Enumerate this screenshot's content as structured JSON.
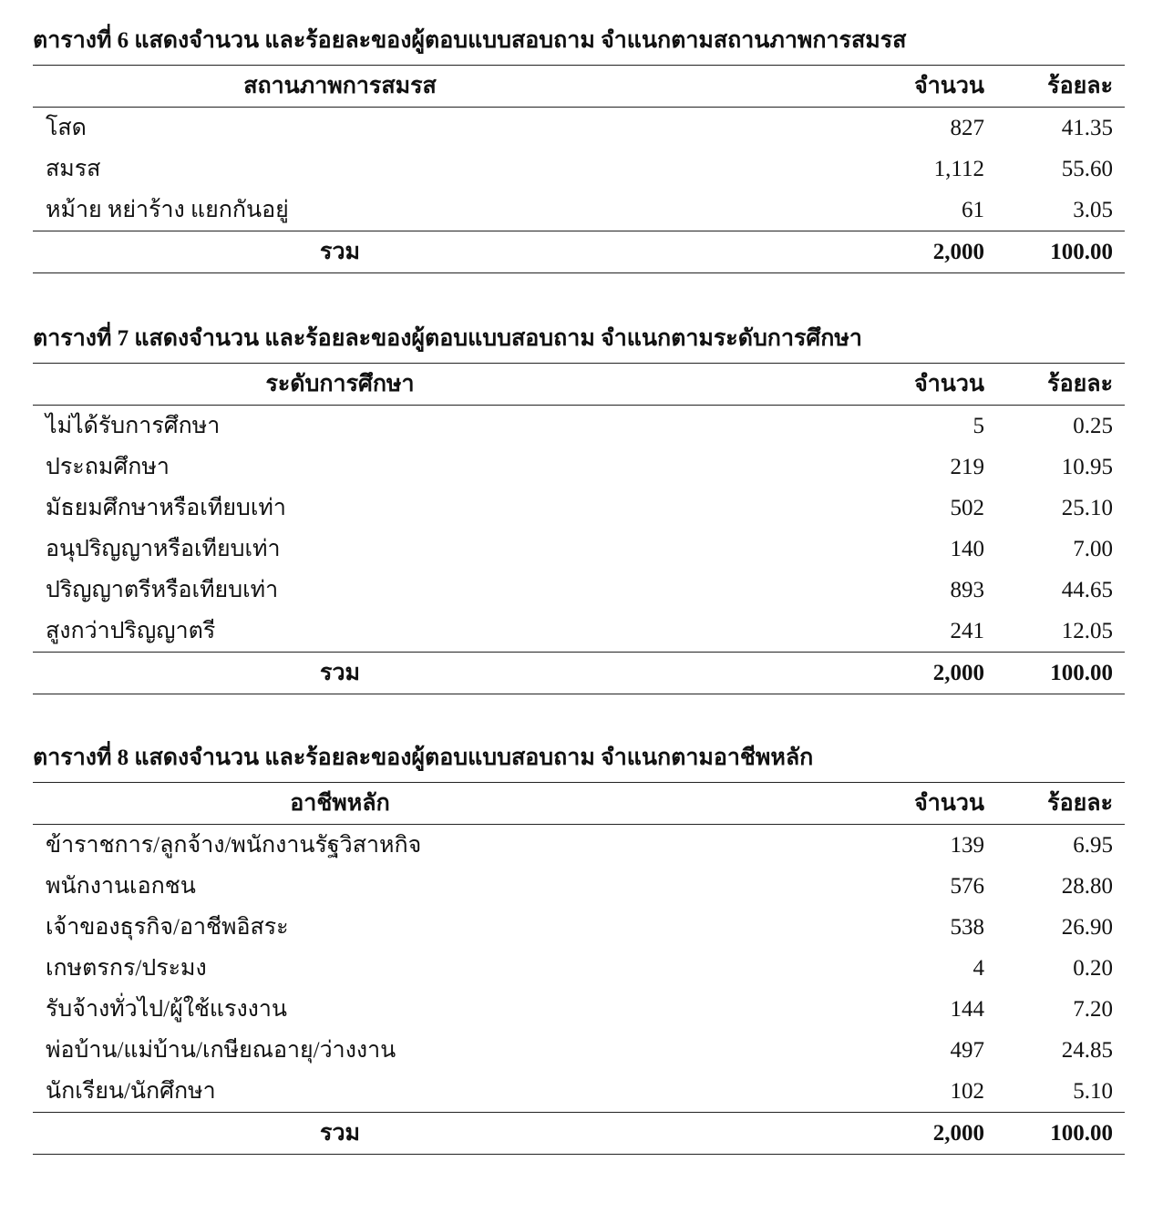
{
  "tables": [
    {
      "title": "ตารางที่ 6 แสดงจำนวน และร้อยละของผู้ตอบแบบสอบถาม จำแนกตามสถานภาพการสมรส",
      "headers": [
        "สถานภาพการสมรส",
        "จำนวน",
        "ร้อยละ"
      ],
      "rows": [
        [
          "โสด",
          "827",
          "41.35"
        ],
        [
          "สมรส",
          "1,112",
          "55.60"
        ],
        [
          "หม้าย หย่าร้าง แยกกันอยู่",
          "61",
          "3.05"
        ]
      ],
      "total": [
        "รวม",
        "2,000",
        "100.00"
      ]
    },
    {
      "title": "ตารางที่ 7 แสดงจำนวน และร้อยละของผู้ตอบแบบสอบถาม จำแนกตามระดับการศึกษา",
      "headers": [
        "ระดับการศึกษา",
        "จำนวน",
        "ร้อยละ"
      ],
      "rows": [
        [
          "ไม่ได้รับการศึกษา",
          "5",
          "0.25"
        ],
        [
          "ประถมศึกษา",
          "219",
          "10.95"
        ],
        [
          "มัธยมศึกษาหรือเทียบเท่า",
          "502",
          "25.10"
        ],
        [
          "อนุปริญญาหรือเทียบเท่า",
          "140",
          "7.00"
        ],
        [
          "ปริญญาตรีหรือเทียบเท่า",
          "893",
          "44.65"
        ],
        [
          "สูงกว่าปริญญาตรี",
          "241",
          "12.05"
        ]
      ],
      "total": [
        "รวม",
        "2,000",
        "100.00"
      ]
    },
    {
      "title": "ตารางที่ 8 แสดงจำนวน และร้อยละของผู้ตอบแบบสอบถาม จำแนกตามอาชีพหลัก",
      "headers": [
        "อาชีพหลัก",
        "จำนวน",
        "ร้อยละ"
      ],
      "rows": [
        [
          "ข้าราชการ/ลูกจ้าง/พนักงานรัฐวิสาหกิจ",
          "139",
          "6.95"
        ],
        [
          "พนักงานเอกชน",
          "576",
          "28.80"
        ],
        [
          "เจ้าของธุรกิจ/อาชีพอิสระ",
          "538",
          "26.90"
        ],
        [
          "เกษตรกร/ประมง",
          "4",
          "0.20"
        ],
        [
          "รับจ้างทั่วไป/ผู้ใช้แรงงาน",
          "144",
          "7.20"
        ],
        [
          "พ่อบ้าน/แม่บ้าน/เกษียณอายุ/ว่างงาน",
          "497",
          "24.85"
        ],
        [
          "นักเรียน/นักศึกษา",
          "102",
          "5.10"
        ]
      ],
      "total": [
        "รวม",
        "2,000",
        "100.00"
      ]
    }
  ]
}
